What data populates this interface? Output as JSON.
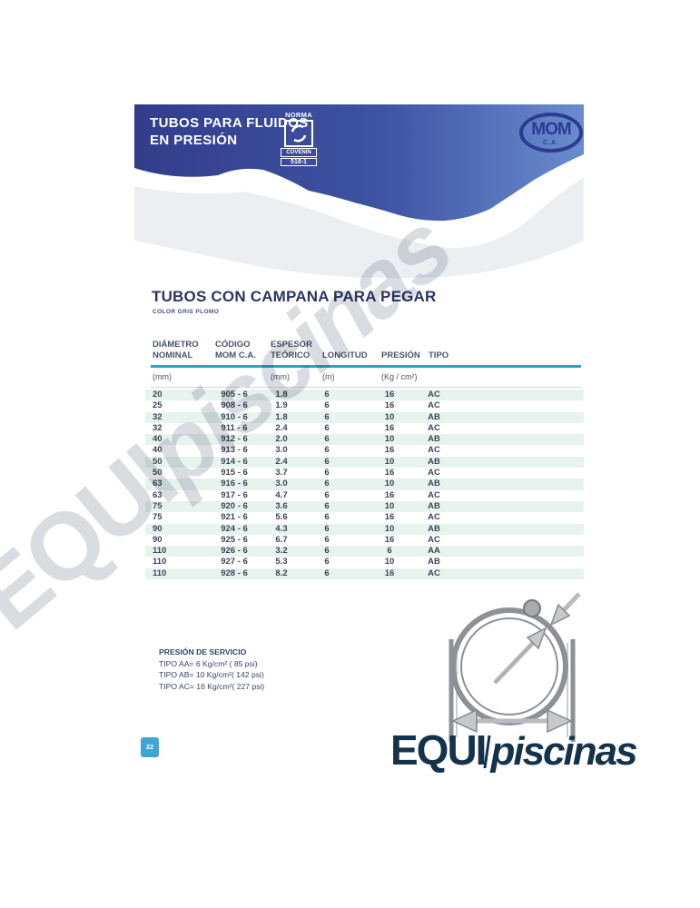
{
  "header": {
    "title_line1": "TUBOS PARA FLUIDOS",
    "title_line2": "EN PRESIÓN",
    "norma_badge": {
      "top": "NORMA",
      "org": "COVENIN",
      "code": "518-1"
    },
    "company_logo": {
      "name": "MOM",
      "suffix": "C.A."
    }
  },
  "section": {
    "title": "TUBOS CON CAMPANA PARA PEGAR",
    "subtitle": "COLOR GRIS PLOMO"
  },
  "table": {
    "columns": [
      {
        "l1": "DIÁMETRO",
        "l2": "NOMINAL",
        "unit": "(mm)"
      },
      {
        "l1": "CÓDIGO",
        "l2": "MOM C.A.",
        "unit": ""
      },
      {
        "l1": "ESPESOR",
        "l2": "TEÓRICO",
        "unit": "(mm)"
      },
      {
        "l1": "",
        "l2": "LONGITUD",
        "unit": "(m)"
      },
      {
        "l1": "",
        "l2": "PRESIÓN",
        "unit": "(Kg / cm²)"
      },
      {
        "l1": "",
        "l2": "TIPO",
        "unit": ""
      }
    ],
    "rows": [
      [
        "20",
        "905 - 6",
        "1.8",
        "6",
        "16",
        "AC"
      ],
      [
        "25",
        "908 - 6",
        "1.9",
        "6",
        "16",
        "AC"
      ],
      [
        "32",
        "910 - 6",
        "1.8",
        "6",
        "10",
        "AB"
      ],
      [
        "32",
        "911 - 6",
        "2.4",
        "6",
        "16",
        "AC"
      ],
      [
        "40",
        "912 - 6",
        "2.0",
        "6",
        "10",
        "AB"
      ],
      [
        "40",
        "913 - 6",
        "3.0",
        "6",
        "16",
        "AC"
      ],
      [
        "50",
        "914 - 6",
        "2.4",
        "6",
        "10",
        "AB"
      ],
      [
        "50",
        "915 - 6",
        "3.7",
        "6",
        "16",
        "AC"
      ],
      [
        "63",
        "916 - 6",
        "3.0",
        "6",
        "10",
        "AB"
      ],
      [
        "63",
        "917 - 6",
        "4.7",
        "6",
        "16",
        "AC"
      ],
      [
        "75",
        "920 - 6",
        "3.6",
        "6",
        "10",
        "AB"
      ],
      [
        "75",
        "921 - 6",
        "5.6",
        "6",
        "16",
        "AC"
      ],
      [
        "90",
        "924 - 6",
        "4.3",
        "6",
        "10",
        "AB"
      ],
      [
        "90",
        "925 - 6",
        "6.7",
        "6",
        "16",
        "AC"
      ],
      [
        "110",
        "926 - 6",
        "3.2",
        "6",
        "6",
        "AA"
      ],
      [
        "110",
        "927 - 6",
        "5.3",
        "6",
        "10",
        "AB"
      ],
      [
        "110",
        "928 - 6",
        "8.2",
        "6",
        "16",
        "AC"
      ]
    ]
  },
  "service_pressure": {
    "title": "PRESIÓN DE SERVICIO",
    "lines": [
      "TIPO AA= 6 Kg/cm² ( 85 psi)",
      "TIPO AB= 10 Kg/cm²( 142 psi)",
      "TIPO AC= 16 Kg/cm²( 227 psi)"
    ]
  },
  "watermark": {
    "bold": "EQUI",
    "italic": "piscinas"
  },
  "footer": {
    "page_number": "22",
    "brand_bold": "EQUI",
    "brand_italic": "piscinas"
  },
  "colors": {
    "banner_dark": "#323d8b",
    "banner_light": "#6a8cce",
    "teal_rule": "#2ba4bd",
    "row_stripe": "#e7f3ef",
    "brand_navy": "#14334b",
    "badge_blue": "#41a5d3",
    "logo_navy": "#2c3b91"
  }
}
